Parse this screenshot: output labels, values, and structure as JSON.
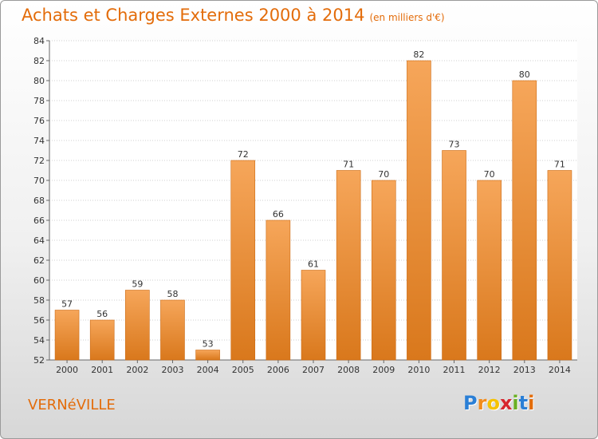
{
  "title": "Achats et Charges Externes 2000 à 2014",
  "subtitle": "(en milliers d'€)",
  "commune": "VERNéVILLE",
  "brand": {
    "letters": [
      "P",
      "r",
      "o",
      "x",
      "i",
      "t",
      "i"
    ],
    "colors": [
      "#2a7fd6",
      "#f28c1c",
      "#f6c200",
      "#d7262e",
      "#6ab023",
      "#2a7fd6",
      "#e36c0a"
    ]
  },
  "colors": {
    "accent": "#e36c0a",
    "bar_light": "#f6a65a",
    "bar_dark": "#d9781c",
    "bar_edge": "#cc6b14"
  },
  "chart_data": {
    "type": "bar",
    "categories": [
      "2000",
      "2001",
      "2002",
      "2003",
      "2004",
      "2005",
      "2006",
      "2007",
      "2008",
      "2009",
      "2010",
      "2011",
      "2012",
      "2013",
      "2014"
    ],
    "values": [
      57,
      56,
      59,
      58,
      53,
      72,
      66,
      61,
      71,
      70,
      82,
      73,
      70,
      80,
      71
    ],
    "ylim": [
      52,
      84
    ],
    "yticks": [
      52,
      54,
      56,
      58,
      60,
      62,
      64,
      66,
      68,
      70,
      72,
      74,
      76,
      78,
      80,
      82,
      84
    ],
    "grid": true,
    "xlabel": "",
    "ylabel": ""
  }
}
